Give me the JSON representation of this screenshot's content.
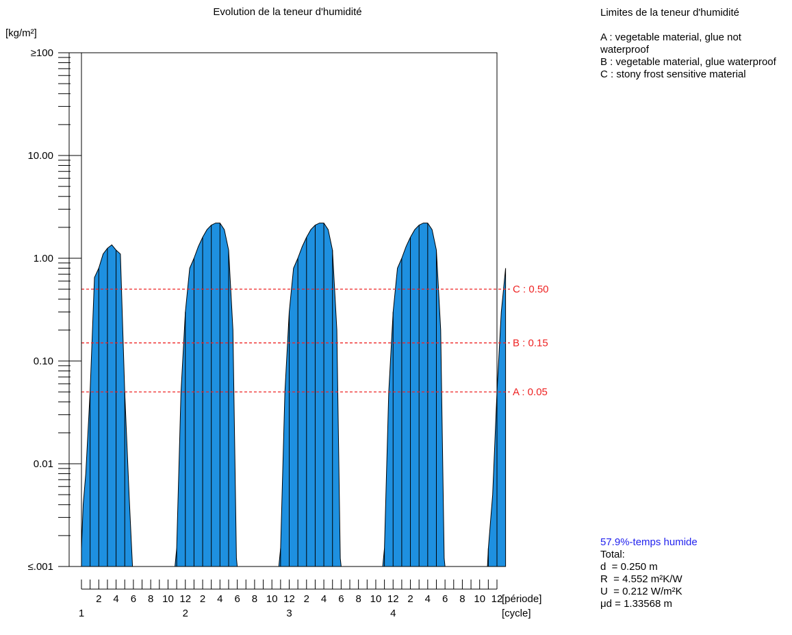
{
  "chart_data": {
    "type": "area",
    "title": "Evolution de la teneur d'humidité",
    "ylabel": "[kg/m²]",
    "yscale": "log",
    "ylim": [
      0.001,
      100
    ],
    "ytick_labels": [
      "≥100",
      "10.00",
      "1.00",
      "0.10",
      "0.01",
      "≤.001"
    ],
    "ytick_values": [
      100,
      10,
      1,
      0.1,
      0.01,
      0.001
    ],
    "x_unit_label": "[période]",
    "cycle_unit_label": "[cycle]",
    "months_per_cycle": 12,
    "cycles": 4,
    "x_month_labels": [
      "2",
      "4",
      "6",
      "8",
      "10",
      "12",
      "2",
      "4",
      "6",
      "8",
      "10",
      "12",
      "2",
      "4",
      "6",
      "8",
      "10",
      "12",
      "2",
      "4",
      "6",
      "8",
      "10",
      "12"
    ],
    "cycle_labels": [
      "1",
      "2",
      "3",
      "4"
    ],
    "fill_color": "#1e90e0",
    "limit_color": "#ee2222",
    "series": [
      {
        "x": [
          0.0,
          0.2,
          0.5,
          1.0,
          1.5,
          2.0,
          2.5,
          3.0,
          3.5,
          4.0,
          4.5,
          5.0,
          5.5,
          5.8,
          5.9,
          10.8,
          11.0,
          11.5,
          12.0,
          12.5,
          13.0,
          13.5,
          14.0,
          14.5,
          15.0,
          15.5,
          16.0,
          16.5,
          17.0,
          17.5,
          17.9,
          18.0,
          22.8,
          23.0,
          23.5,
          24.0,
          24.5,
          25.0,
          25.5,
          26.0,
          26.5,
          27.0,
          27.5,
          28.0,
          28.5,
          29.0,
          29.5,
          29.9,
          30.0,
          34.8,
          35.0,
          35.5,
          36.0,
          36.5,
          37.0,
          37.5,
          38.0,
          38.5,
          39.0,
          39.5,
          40.0,
          40.5,
          41.0,
          41.5,
          41.9,
          42.0,
          46.9,
          47.0,
          47.5,
          48.0,
          48.5,
          49.0
        ],
        "y": [
          0.0015,
          0.004,
          0.008,
          0.05,
          0.65,
          0.8,
          1.1,
          1.25,
          1.35,
          1.2,
          1.1,
          0.05,
          0.005,
          0.0015,
          0.001,
          0.001,
          0.0015,
          0.05,
          0.3,
          0.8,
          1.0,
          1.3,
          1.6,
          1.9,
          2.1,
          2.2,
          2.2,
          1.9,
          1.2,
          0.2,
          0.0012,
          0.001,
          0.001,
          0.0015,
          0.05,
          0.3,
          0.8,
          1.0,
          1.3,
          1.6,
          1.9,
          2.1,
          2.2,
          2.2,
          1.9,
          1.2,
          0.2,
          0.0012,
          0.001,
          0.001,
          0.0015,
          0.05,
          0.3,
          0.8,
          1.0,
          1.3,
          1.6,
          1.9,
          2.1,
          2.2,
          2.2,
          1.9,
          1.2,
          0.2,
          0.0012,
          0.001,
          0.001,
          0.0015,
          0.005,
          0.05,
          0.3,
          0.8
        ]
      }
    ],
    "limits": [
      {
        "label": "C : 0.50",
        "value": 0.5
      },
      {
        "label": "B : 0.15",
        "value": 0.15
      },
      {
        "label": "A : 0.05",
        "value": 0.05
      }
    ]
  },
  "legend": {
    "title": "Limites de la teneur d'humidité",
    "entries": [
      "A : vegetable material, glue not waterproof",
      "B : vegetable material, glue waterproof",
      "C : stony frost sensitive material"
    ]
  },
  "stats": {
    "wet_time": "57.9%-temps humide",
    "total_label": "Total:",
    "d": "d  = 0.250 m",
    "R": "R  = 4.552 m²K/W",
    "U": "U  = 0.212 W/m²K",
    "mud": "μd = 1.33568 m"
  }
}
